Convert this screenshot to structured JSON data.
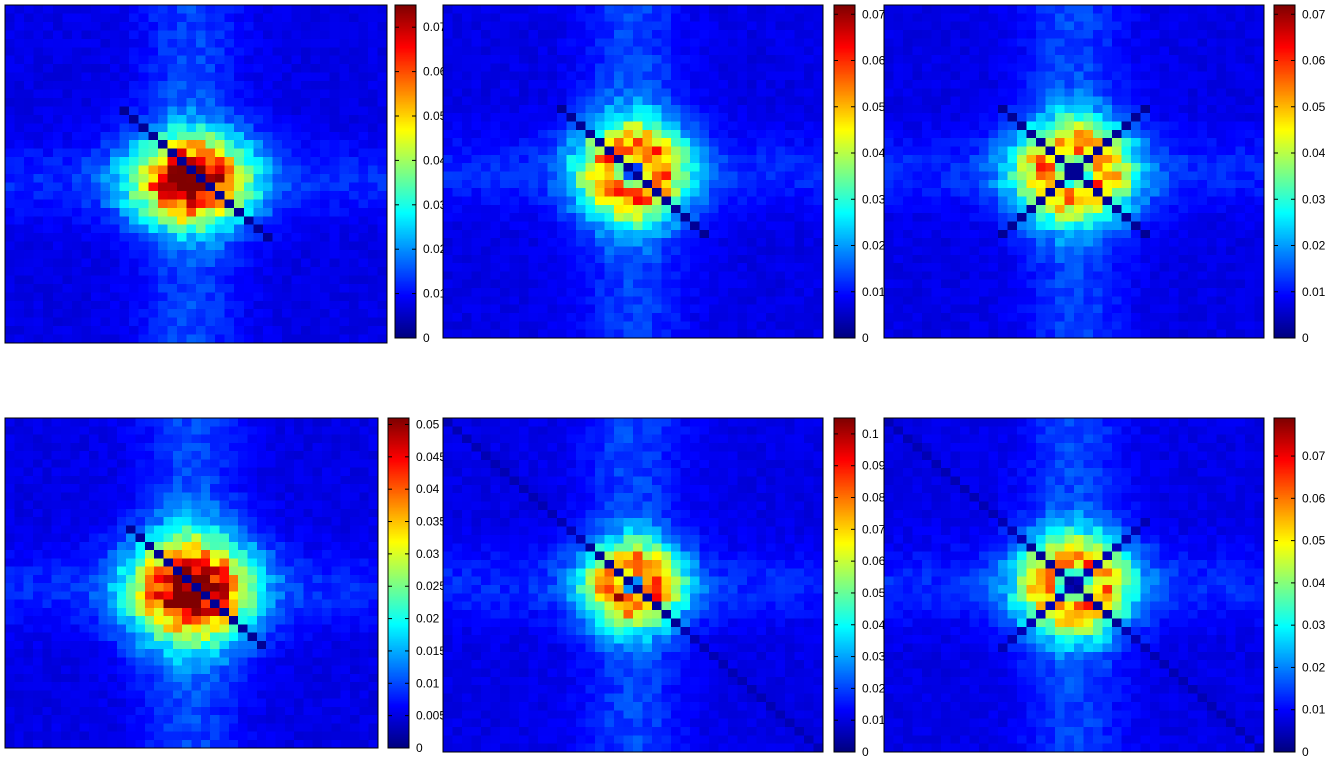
{
  "chart_data": [
    {
      "type": "heatmap",
      "grid": [
        40,
        40
      ],
      "center": [
        0.487,
        0.519
      ],
      "sigma": [
        4.2,
        3.6
      ],
      "hole": 0,
      "diag": "main-short",
      "vmin": 0,
      "vmax": 0.075,
      "colormap": "jet",
      "ticks": [
        "0",
        "0.01",
        "0.02",
        "0.03",
        "0.04",
        "0.05",
        "0.06",
        "0.07"
      ],
      "tick_values": [
        0,
        0.01,
        0.02,
        0.03,
        0.04,
        0.05,
        0.06,
        0.07
      ]
    },
    {
      "type": "heatmap",
      "grid": [
        40,
        40
      ],
      "center": [
        0.5,
        0.5
      ],
      "sigma": [
        3.7,
        3.9
      ],
      "hole": 1.3,
      "diag": "main-short",
      "vmin": 0,
      "vmax": 0.072,
      "colormap": "jet",
      "ticks": [
        "0",
        "0.01",
        "0.02",
        "0.03",
        "0.04",
        "0.05",
        "0.06",
        "0.07"
      ],
      "tick_values": [
        0,
        0.01,
        0.02,
        0.03,
        0.04,
        0.05,
        0.06,
        0.07
      ]
    },
    {
      "type": "heatmap",
      "grid": [
        40,
        40
      ],
      "center": [
        0.5,
        0.5
      ],
      "sigma": [
        4.0,
        3.9
      ],
      "hole": 1.5,
      "diag": "both",
      "vmin": 0,
      "vmax": 0.072,
      "colormap": "jet",
      "ticks": [
        "0",
        "0.01",
        "0.02",
        "0.03",
        "0.04",
        "0.05",
        "0.06",
        "0.07"
      ],
      "tick_values": [
        0,
        0.01,
        0.02,
        0.03,
        0.04,
        0.05,
        0.06,
        0.07
      ]
    },
    {
      "type": "heatmap",
      "grid": [
        40,
        40
      ],
      "center": [
        0.5,
        0.52
      ],
      "sigma": [
        4.4,
        4.4
      ],
      "hole": 0,
      "diag": "main-short",
      "vmin": 0,
      "vmax": 0.051,
      "colormap": "jet",
      "ticks": [
        "0",
        "0.005",
        "0.01",
        "0.015",
        "0.02",
        "0.025",
        "0.03",
        "0.035",
        "0.04",
        "0.045",
        "0.05"
      ],
      "tick_values": [
        0,
        0.005,
        0.01,
        0.015,
        0.02,
        0.025,
        0.03,
        0.035,
        0.04,
        0.045,
        0.05
      ]
    },
    {
      "type": "heatmap",
      "grid": [
        40,
        40
      ],
      "center": [
        0.5,
        0.5
      ],
      "sigma": [
        3.3,
        3.3
      ],
      "hole": 1.0,
      "diag": "main-full",
      "vmin": 0,
      "vmax": 0.105,
      "colormap": "jet",
      "ticks": [
        "0",
        "0.01",
        "0.02",
        "0.03",
        "0.04",
        "0.05",
        "0.06",
        "0.07",
        "0.08",
        "0.09",
        "0.1"
      ],
      "tick_values": [
        0,
        0.01,
        0.02,
        0.03,
        0.04,
        0.05,
        0.06,
        0.07,
        0.08,
        0.09,
        0.1
      ]
    },
    {
      "type": "heatmap",
      "grid": [
        40,
        40
      ],
      "center": [
        0.5,
        0.5
      ],
      "sigma": [
        3.8,
        3.8
      ],
      "hole": 1.5,
      "diag": "both-full",
      "vmin": 0,
      "vmax": 0.079,
      "colormap": "jet",
      "ticks": [
        "0",
        "0.01",
        "0.02",
        "0.03",
        "0.04",
        "0.05",
        "0.06",
        "0.07"
      ],
      "tick_values": [
        0,
        0.01,
        0.02,
        0.03,
        0.04,
        0.05,
        0.06,
        0.07
      ]
    }
  ]
}
